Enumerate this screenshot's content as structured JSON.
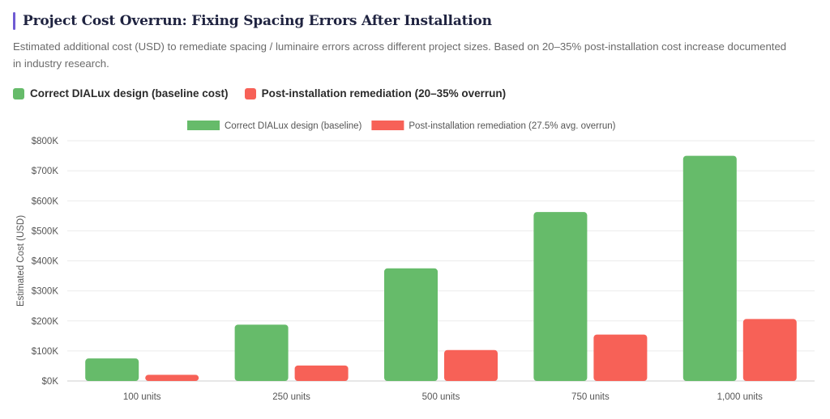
{
  "header": {
    "title": "Project Cost Overrun: Fixing Spacing Errors After Installation",
    "subtitle": "Estimated additional cost (USD) to remediate spacing / luminaire errors across different project sizes. Based on 20–35% post-installation cost increase documented in industry research."
  },
  "legend_top": [
    {
      "label": "Correct DIALux design (baseline cost)",
      "color": "#66bb6a"
    },
    {
      "label": "Post-installation remediation (20–35% overrun)",
      "color": "#f76157"
    }
  ],
  "colors": {
    "green": "#66bb6a",
    "red": "#f76157",
    "grid": "#ebebeb",
    "accent": "#6f5bd3"
  },
  "chart_data": {
    "type": "bar",
    "categories": [
      "100 units",
      "250 units",
      "500 units",
      "750 units",
      "1,000 units"
    ],
    "series": [
      {
        "name": "Correct DIALux design (baseline)",
        "color": "#66bb6a",
        "values": [
          75000,
          187500,
          375000,
          562500,
          750000
        ]
      },
      {
        "name": "Post-installation remediation (27.5% avg. overrun)",
        "color": "#f76157",
        "values": [
          20625,
          51563,
          103125,
          154688,
          206250
        ]
      }
    ],
    "ylabel": "Estimated Cost (USD)",
    "xlabel": "",
    "ylim": [
      0,
      800000
    ],
    "yticks": [
      0,
      100000,
      200000,
      300000,
      400000,
      500000,
      600000,
      700000,
      800000
    ],
    "ytick_labels": [
      "$0K",
      "$100K",
      "$200K",
      "$300K",
      "$400K",
      "$500K",
      "$600K",
      "$700K",
      "$800K"
    ],
    "grid": true,
    "legend_position": "top-center"
  }
}
